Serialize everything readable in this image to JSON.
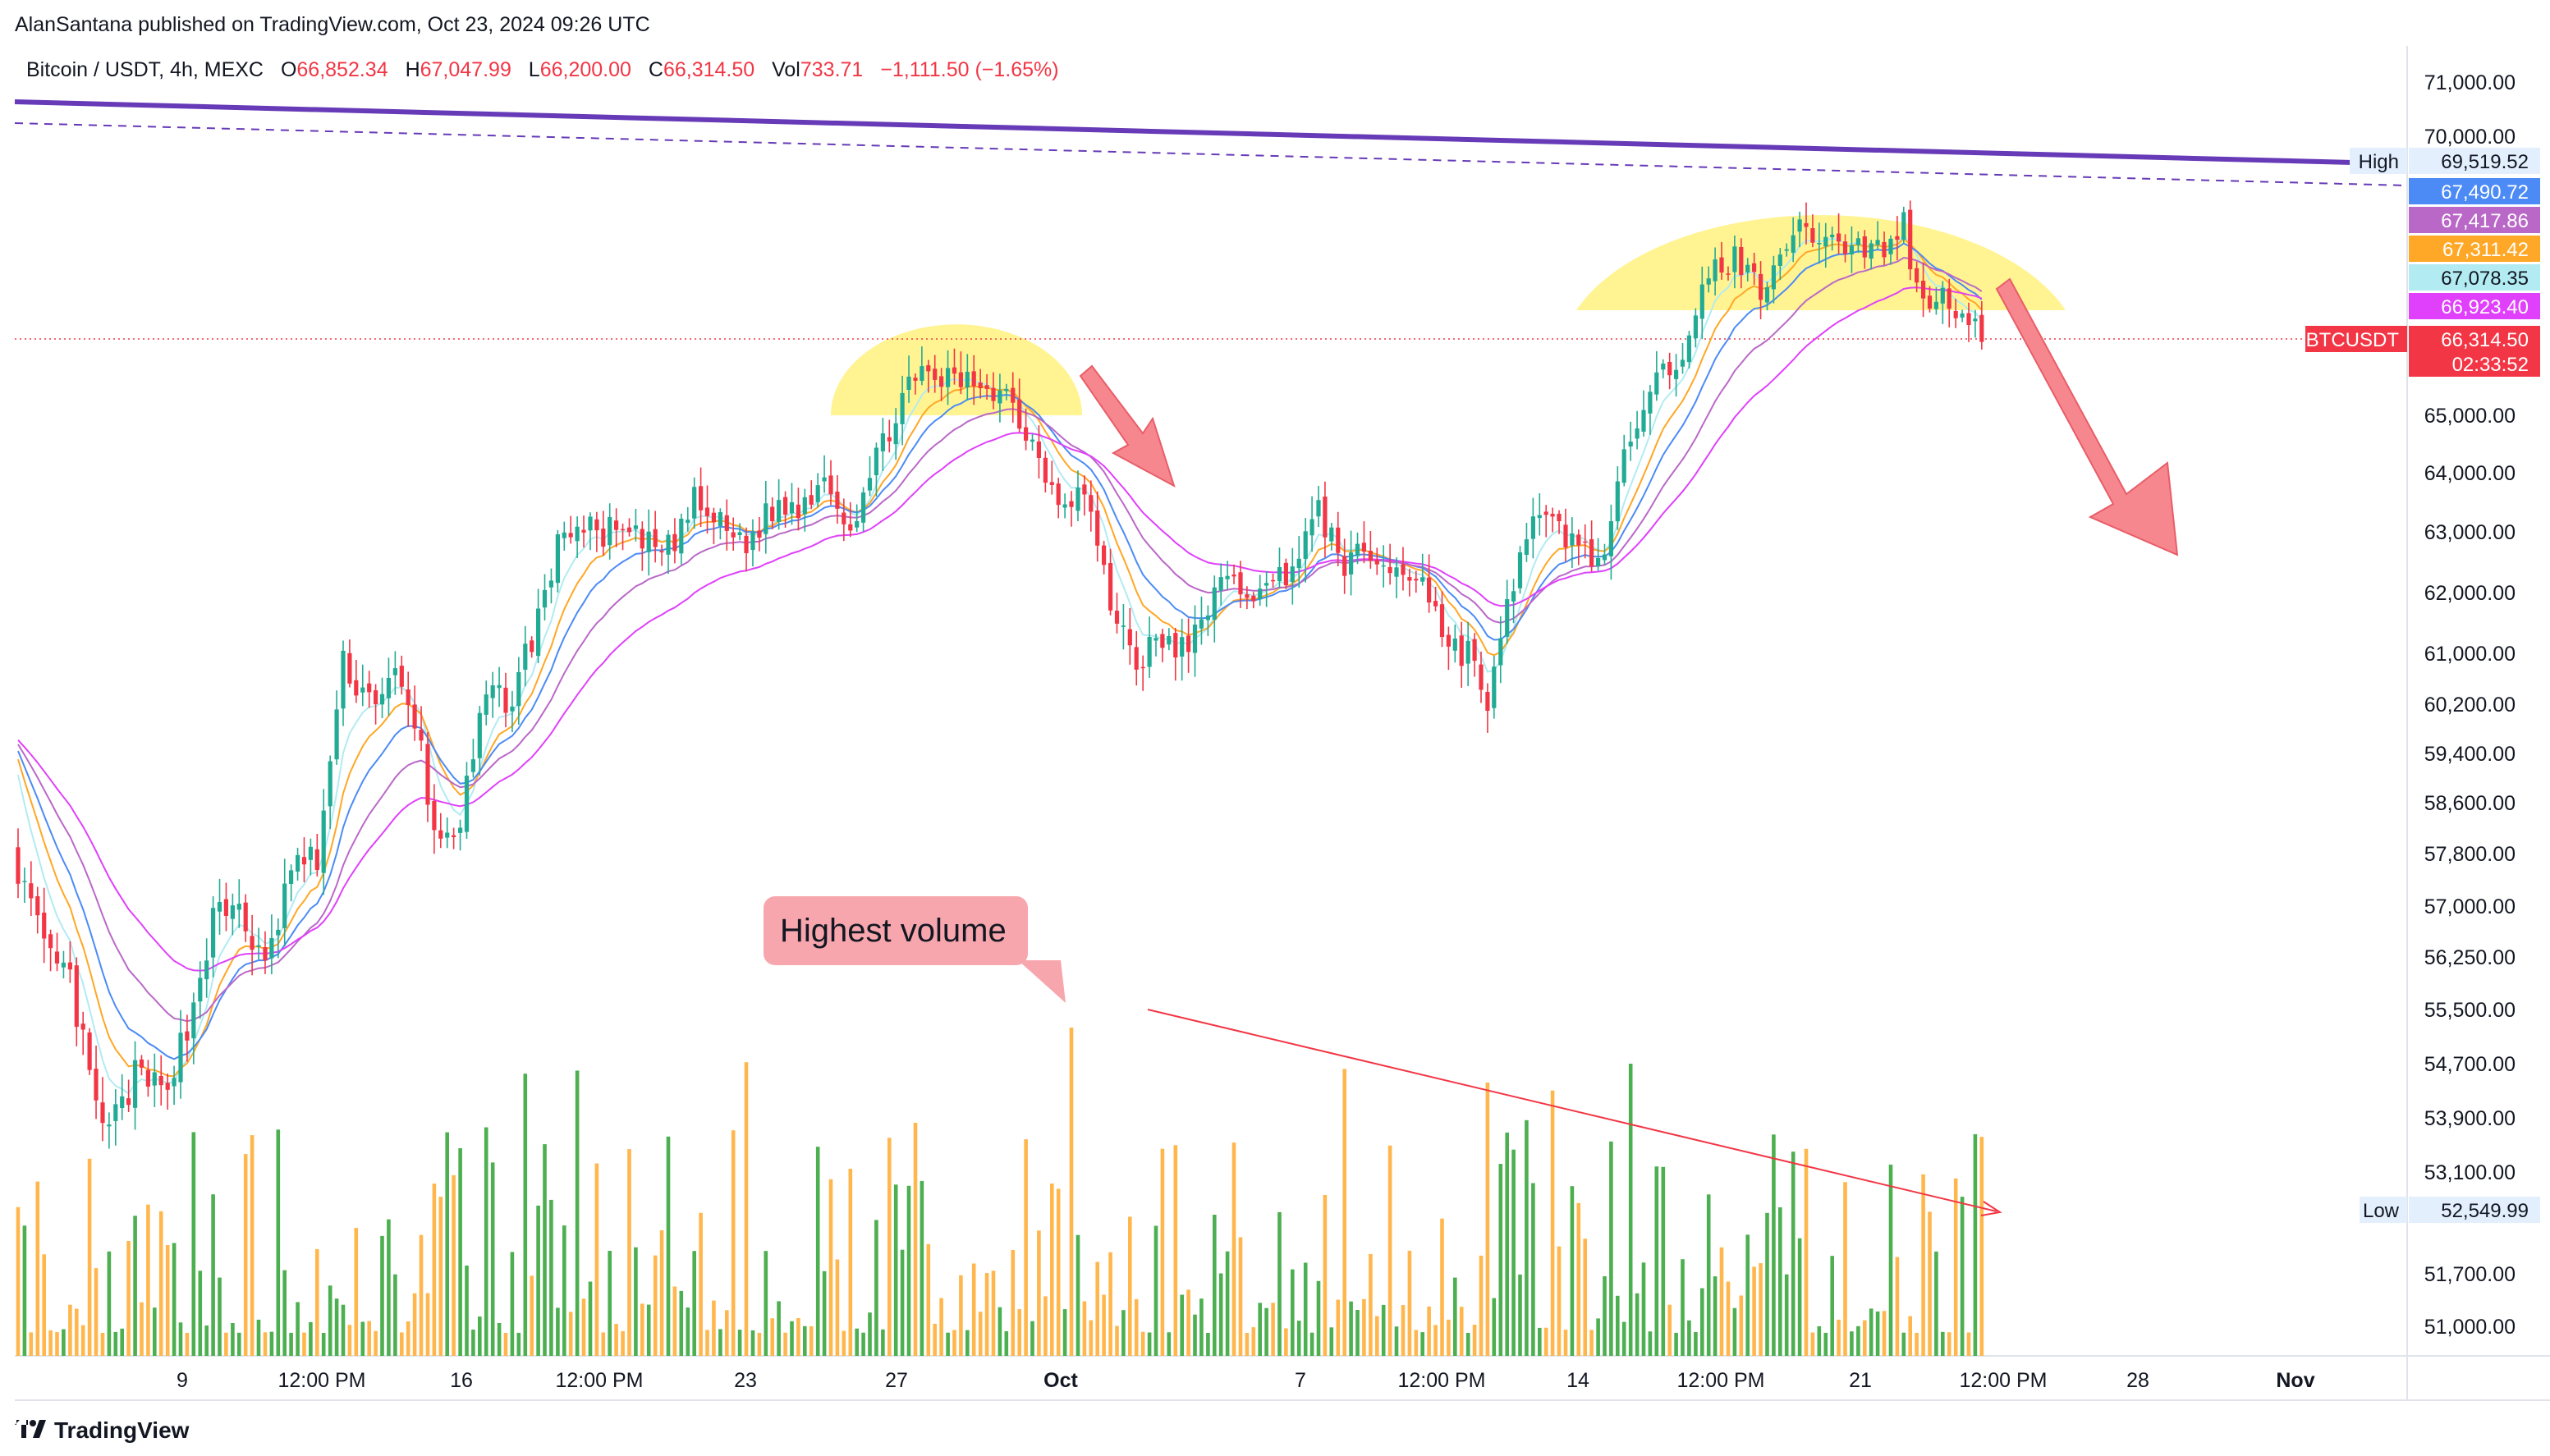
{
  "header": {
    "publisher": "AlanSantana published on TradingView.com, Oct 23, 2024 09:26 UTC",
    "symbol": "Bitcoin / USDT, 4h, MEXC",
    "o_label": "O",
    "o_value": "66,852.34",
    "h_label": "H",
    "h_value": "67,047.99",
    "l_label": "L",
    "l_value": "66,200.00",
    "c_label": "C",
    "c_value": "66,314.50",
    "vol_label": "Vol",
    "vol_value": "733.71",
    "change": "−1,111.50 (−1.65%)"
  },
  "footer": {
    "brand": "TradingView"
  },
  "annotation": {
    "text": "Highest volume"
  },
  "colors": {
    "up": "#22ab94",
    "down": "#f23645",
    "vol_up": "#4caf50",
    "vol_down": "#ffb74d",
    "trendline": "#673ab7",
    "highlight": "#fff176",
    "arrow": "#f7878f",
    "callout": "#f8a6ad"
  },
  "chart_data": {
    "type": "candlestick",
    "symbol": "BTCUSDT",
    "interval": "4h",
    "ylim": [
      50600,
      71800
    ],
    "price_ticks": [
      "71,000.00",
      "70,000.00",
      "65,000.00",
      "64,000.00",
      "63,000.00",
      "62,000.00",
      "61,000.00",
      "60,200.00",
      "59,400.00",
      "58,600.00",
      "57,800.00",
      "57,000.00",
      "56,250.00",
      "55,500.00",
      "54,700.00",
      "53,900.00",
      "53,100.00",
      "51,700.00",
      "51,000.00"
    ],
    "x_ticks": [
      "9",
      "12:00 PM",
      "16",
      "12:00 PM",
      "23",
      "27",
      "Oct",
      "7",
      "12:00 PM",
      "14",
      "12:00 PM",
      "21",
      "12:00 PM",
      "28",
      "Nov"
    ],
    "price_labels": [
      {
        "text": "High",
        "value": "69,519.52"
      },
      {
        "value": "67,490.72",
        "color": "#4c8bf5"
      },
      {
        "value": "67,417.86",
        "color": "#ba68c8"
      },
      {
        "value": "67,311.42",
        "color": "#ffa726"
      },
      {
        "value": "67,078.35",
        "color": "#b2ebf2"
      },
      {
        "value": "66,923.40",
        "color": "#e040fb"
      },
      {
        "text": "BTCUSDT",
        "value": "66,314.50",
        "countdown": "02:33:52",
        "color": "#f23645"
      },
      {
        "text": "Low",
        "value": "52,549.99"
      }
    ],
    "anchors": [
      [
        0,
        57600
      ],
      [
        4,
        56300
      ],
      [
        8,
        55900
      ],
      [
        12,
        54000
      ],
      [
        14,
        53700
      ],
      [
        18,
        54500
      ],
      [
        22,
        54300
      ],
      [
        26,
        55200
      ],
      [
        30,
        56800
      ],
      [
        34,
        57000
      ],
      [
        38,
        56000
      ],
      [
        42,
        57600
      ],
      [
        46,
        57700
      ],
      [
        50,
        60800
      ],
      [
        54,
        60300
      ],
      [
        58,
        60600
      ],
      [
        62,
        59500
      ],
      [
        64,
        58000
      ],
      [
        68,
        58300
      ],
      [
        72,
        60300
      ],
      [
        76,
        60300
      ],
      [
        80,
        61600
      ],
      [
        84,
        63100
      ],
      [
        88,
        63000
      ],
      [
        92,
        63000
      ],
      [
        96,
        62800
      ],
      [
        100,
        62700
      ],
      [
        104,
        63500
      ],
      [
        108,
        63100
      ],
      [
        112,
        62800
      ],
      [
        116,
        63400
      ],
      [
        120,
        63400
      ],
      [
        124,
        64000
      ],
      [
        128,
        63100
      ],
      [
        132,
        64200
      ],
      [
        136,
        65400
      ],
      [
        140,
        65700
      ],
      [
        144,
        65600
      ],
      [
        148,
        65600
      ],
      [
        152,
        65400
      ],
      [
        156,
        64500
      ],
      [
        160,
        63600
      ],
      [
        164,
        63700
      ],
      [
        168,
        61800
      ],
      [
        172,
        60900
      ],
      [
        176,
        61200
      ],
      [
        180,
        61000
      ],
      [
        184,
        62100
      ],
      [
        188,
        62100
      ],
      [
        192,
        62000
      ],
      [
        196,
        62500
      ],
      [
        200,
        63300
      ],
      [
        204,
        62500
      ],
      [
        208,
        62600
      ],
      [
        212,
        62300
      ],
      [
        216,
        62300
      ],
      [
        220,
        61100
      ],
      [
        224,
        61000
      ],
      [
        226,
        60000
      ],
      [
        228,
        61200
      ],
      [
        232,
        63100
      ],
      [
        236,
        63100
      ],
      [
        240,
        62800
      ],
      [
        244,
        62500
      ],
      [
        248,
        64700
      ],
      [
        252,
        66000
      ],
      [
        256,
        65800
      ],
      [
        260,
        67600
      ],
      [
        264,
        67800
      ],
      [
        268,
        67300
      ],
      [
        272,
        68200
      ],
      [
        276,
        68300
      ],
      [
        280,
        68100
      ],
      [
        284,
        68000
      ],
      [
        288,
        68000
      ],
      [
        290,
        68500
      ],
      [
        292,
        67200
      ],
      [
        296,
        67100
      ],
      [
        300,
        66850
      ],
      [
        302,
        66314.5
      ]
    ],
    "ema_offsets": [
      {
        "name": "",
        "color": "#b2ebf2",
        "periods": 6,
        "down": -500
      },
      {
        "name": "",
        "color": "#ffa726",
        "periods": 10,
        "down": -700
      },
      {
        "name": "",
        "color": "#4c8bf5",
        "periods": 15,
        "down": -900
      },
      {
        "name": "",
        "color": "#ba68c8",
        "periods": 24,
        "down": -1200
      },
      {
        "name": "",
        "color": "#e040fb",
        "periods": 38,
        "down": -1600
      }
    ],
    "volume_peak_index": 162,
    "resistance_line": {
      "from": [
        -2,
        70620
      ],
      "to": [
        355,
        69520
      ]
    },
    "dashed_line": {
      "from": [
        -2,
        70150
      ],
      "to": [
        355,
        69350
      ]
    }
  }
}
